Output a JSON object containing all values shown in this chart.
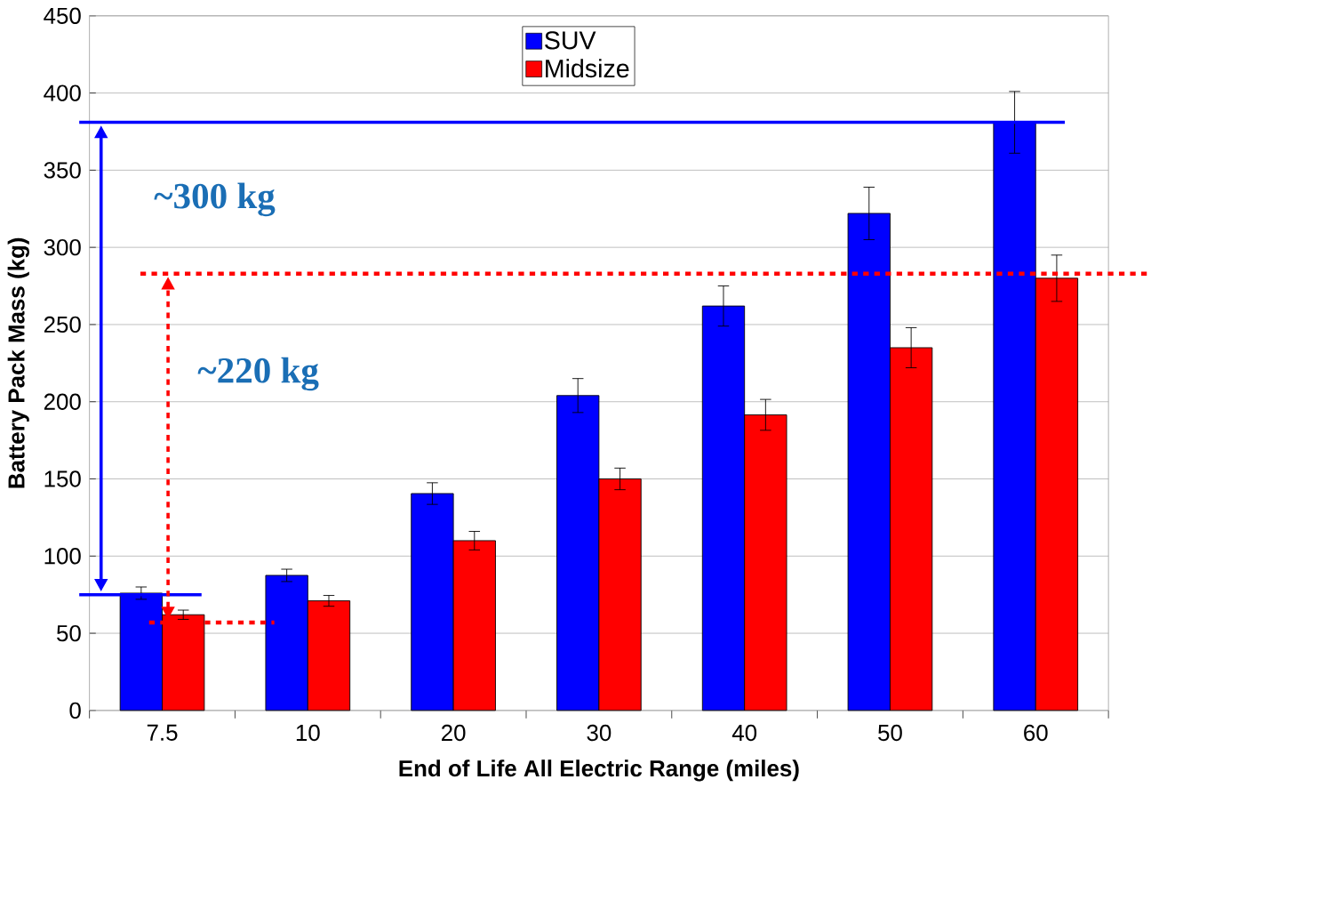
{
  "chart_data": {
    "type": "bar",
    "xlabel": "End of Life All Electric Range (miles)",
    "ylabel": "Battery Pack Mass (kg)",
    "categories": [
      "7.5",
      "10",
      "20",
      "30",
      "40",
      "50",
      "60"
    ],
    "series": [
      {
        "name": "SUV",
        "color": "#0000ff",
        "values": [
          76,
          87.5,
          140.5,
          204,
          262,
          322,
          381
        ],
        "errors": [
          4,
          4,
          7,
          11,
          13,
          17,
          20
        ]
      },
      {
        "name": "Midsize",
        "color": "#ff0000",
        "values": [
          62,
          71,
          110,
          150,
          191.5,
          235,
          280
        ],
        "errors": [
          3,
          3.5,
          6,
          7,
          10,
          13,
          15
        ]
      }
    ],
    "ylim": [
      0,
      450
    ],
    "yticks": [
      0,
      50,
      100,
      150,
      200,
      250,
      300,
      350,
      400,
      450
    ],
    "grid": "y",
    "legend": "top",
    "ref_lines": [
      {
        "axis": "y",
        "value": 381,
        "color": "#0000ff",
        "line_style": "solid"
      },
      {
        "axis": "y",
        "value": 75,
        "color": "#0000ff",
        "line_style": "solid"
      },
      {
        "axis": "y",
        "value": 283,
        "color": "#ff0000",
        "line_style": "dotted"
      },
      {
        "axis": "y",
        "value": 57,
        "color": "#ff0000",
        "line_style": "dotted"
      }
    ],
    "annotations": [
      "~300 kg",
      "~220 kg"
    ]
  }
}
